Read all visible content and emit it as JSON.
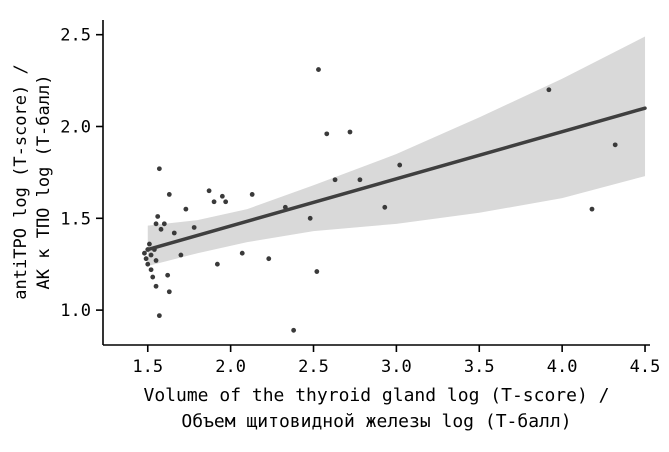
{
  "chart_data": {
    "type": "scatter",
    "xlabel_line1": "Volume of the thyroid gland log (T-score) /",
    "xlabel_line2": "Объем щитовидной железы log (Т-балл)",
    "ylabel_line1": "antiTPO log (T-score) /",
    "ylabel_line2": "АК к ТПО log (Т-балл)",
    "xlim": [
      1.23,
      4.53
    ],
    "ylim": [
      0.81,
      2.58
    ],
    "x_ticks": [
      1.5,
      2.0,
      2.5,
      3.0,
      3.5,
      4.0,
      4.5
    ],
    "y_ticks": [
      1.0,
      1.5,
      2.0,
      2.5
    ],
    "grid": false,
    "legend": "none",
    "points": [
      [
        1.48,
        1.31
      ],
      [
        1.49,
        1.28
      ],
      [
        1.5,
        1.33
      ],
      [
        1.5,
        1.25
      ],
      [
        1.51,
        1.36
      ],
      [
        1.52,
        1.3
      ],
      [
        1.52,
        1.22
      ],
      [
        1.54,
        1.33
      ],
      [
        1.55,
        1.47
      ],
      [
        1.55,
        1.27
      ],
      [
        1.56,
        1.51
      ],
      [
        1.53,
        1.18
      ],
      [
        1.55,
        1.13
      ],
      [
        1.57,
        0.97
      ],
      [
        1.58,
        1.44
      ],
      [
        1.6,
        1.47
      ],
      [
        1.62,
        1.19
      ],
      [
        1.63,
        1.1
      ],
      [
        1.57,
        1.77
      ],
      [
        1.63,
        1.63
      ],
      [
        1.66,
        1.42
      ],
      [
        1.7,
        1.3
      ],
      [
        1.73,
        1.55
      ],
      [
        1.78,
        1.45
      ],
      [
        1.87,
        1.65
      ],
      [
        1.9,
        1.59
      ],
      [
        1.95,
        1.62
      ],
      [
        1.97,
        1.59
      ],
      [
        1.92,
        1.25
      ],
      [
        2.07,
        1.31
      ],
      [
        2.13,
        1.63
      ],
      [
        2.23,
        1.28
      ],
      [
        2.33,
        1.56
      ],
      [
        2.38,
        0.89
      ],
      [
        2.48,
        1.5
      ],
      [
        2.52,
        1.21
      ],
      [
        2.53,
        2.31
      ],
      [
        2.58,
        1.96
      ],
      [
        2.63,
        1.71
      ],
      [
        2.72,
        1.97
      ],
      [
        2.78,
        1.71
      ],
      [
        2.93,
        1.56
      ],
      [
        3.02,
        1.79
      ],
      [
        3.92,
        2.2
      ],
      [
        4.18,
        1.55
      ],
      [
        4.32,
        1.9
      ]
    ],
    "regression_line": {
      "x": [
        1.5,
        4.5
      ],
      "y": [
        1.33,
        2.1
      ]
    },
    "confidence_band": {
      "x": [
        1.5,
        1.8,
        2.1,
        2.5,
        3.0,
        3.5,
        4.0,
        4.5
      ],
      "upper": [
        1.46,
        1.49,
        1.55,
        1.68,
        1.85,
        2.05,
        2.26,
        2.49
      ],
      "lower": [
        1.24,
        1.31,
        1.37,
        1.43,
        1.47,
        1.53,
        1.61,
        1.73
      ]
    },
    "colors": {
      "point": "#3a3a3a",
      "line": "#3f3f3f",
      "band": "#d9d9d9",
      "axis": "#000000"
    }
  }
}
